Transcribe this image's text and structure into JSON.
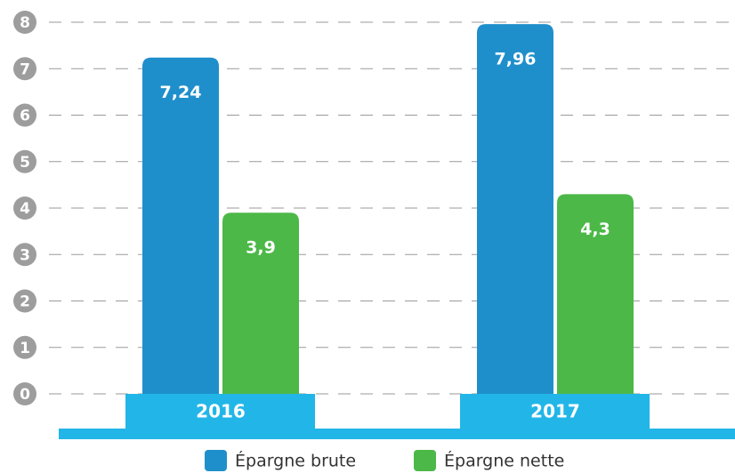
{
  "chart_data": {
    "type": "bar",
    "categories": [
      "2016",
      "2017"
    ],
    "series": [
      {
        "name": "Épargne brute",
        "color": "#1f8fcb",
        "values": [
          7.24,
          7.96
        ],
        "value_labels": [
          "7,24",
          "7,96"
        ]
      },
      {
        "name": "Épargne nette",
        "color": "#4cb848",
        "values": [
          3.9,
          4.3
        ],
        "value_labels": [
          "3,9",
          "4,3"
        ]
      }
    ],
    "ylim": [
      0,
      8
    ],
    "yticks": [
      0,
      1,
      2,
      3,
      4,
      5,
      6,
      7,
      8
    ],
    "grid": true,
    "legend": "bottom"
  }
}
